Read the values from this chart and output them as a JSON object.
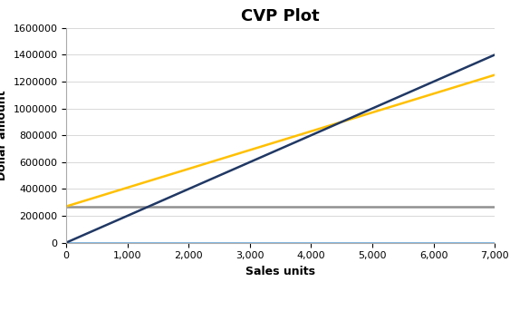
{
  "title": "CVP Plot",
  "xlabel": "Sales units",
  "ylabel": "Dollar amount",
  "xlim": [
    0,
    7000
  ],
  "ylim": [
    0,
    1600000
  ],
  "xticks": [
    0,
    1000,
    2000,
    3000,
    4000,
    5000,
    6000,
    7000
  ],
  "yticks": [
    0,
    200000,
    400000,
    600000,
    800000,
    1000000,
    1200000,
    1400000,
    1600000
  ],
  "units": [
    0,
    7000
  ],
  "sales_units_values": [
    0,
    0
  ],
  "fixed_cost_values": [
    270000,
    270000
  ],
  "total_cost_slope": 140,
  "total_cost_intercept": 270000,
  "sales_in_dollars_slope": 200,
  "sales_in_dollars_intercept": 0,
  "color_sales_units": "#5BA3DC",
  "color_fixed_cost": "#909090",
  "color_total_cost": "#FFC000",
  "color_sales_dollars": "#203864",
  "line_width": 1.8,
  "title_fontsize": 13,
  "axis_label_fontsize": 9,
  "tick_fontsize": 8,
  "legend_fontsize": 8,
  "background_color": "#FFFFFF",
  "grid_color": "#D8D8D8"
}
